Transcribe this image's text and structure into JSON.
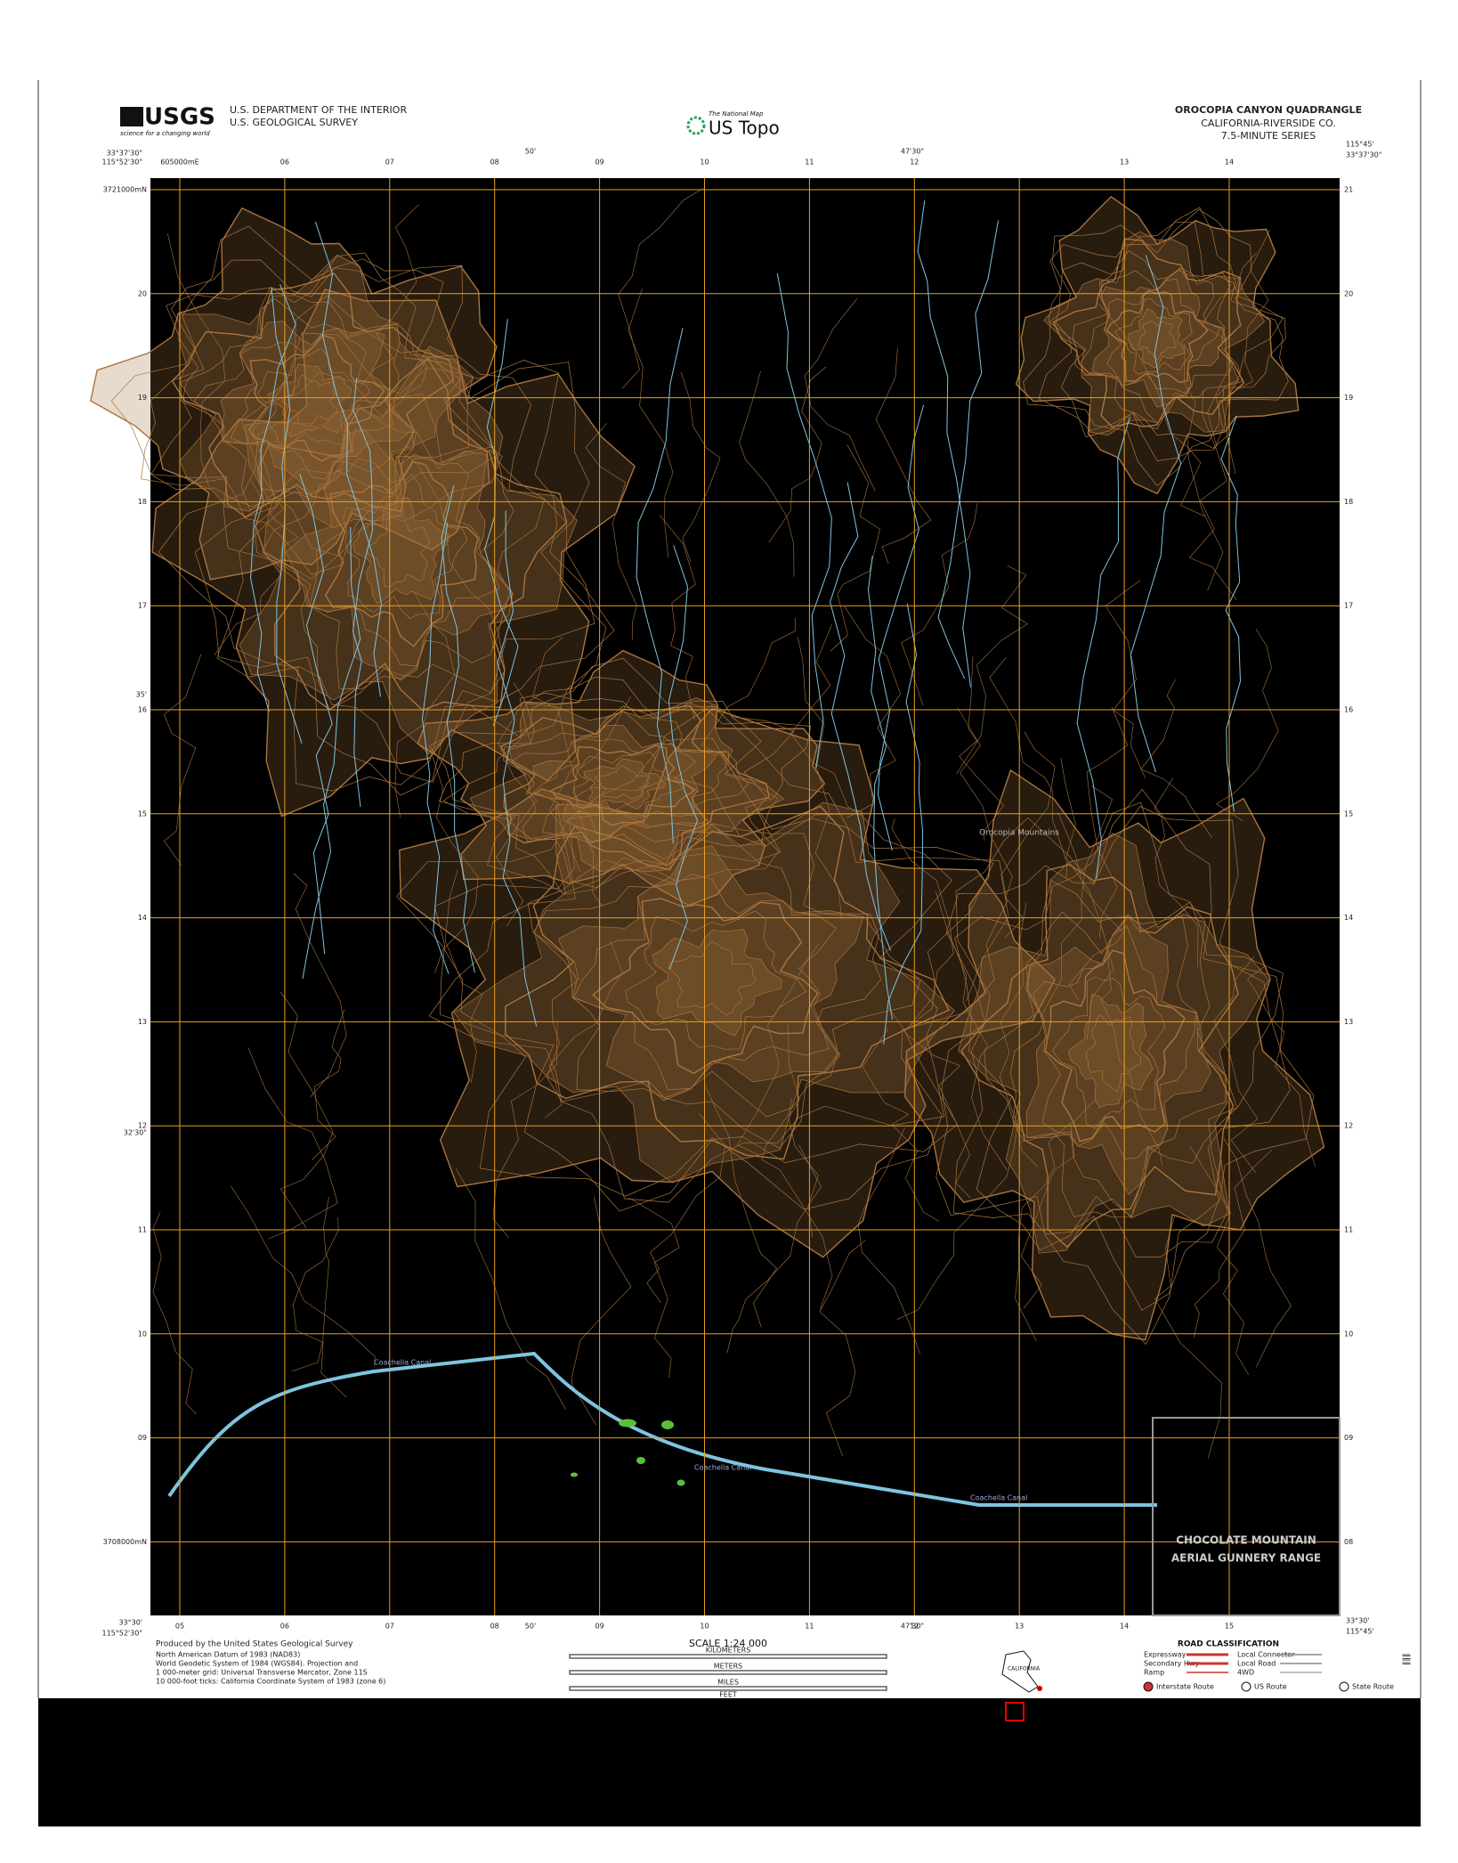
{
  "header": {
    "logo": "USGS",
    "logo_tagline": "science for a changing world",
    "agency_1": "U.S. DEPARTMENT OF THE INTERIOR",
    "agency_2": "U.S. GEOLOGICAL SURVEY",
    "national_map": "The National Map",
    "us_topo": "US Topo",
    "quad_name": "OROCOPIA CANYON QUADRANGLE",
    "state_county": "CALIFORNIA-RIVERSIDE CO.",
    "series": "7.5-MINUTE SERIES"
  },
  "corners": {
    "top_left_lat": "33°37'30\"",
    "top_left_lon": "115°52'30\"",
    "top_right_lon": "115°45'",
    "top_right_lat": "33°37'30\"",
    "bottom_left_lat": "33°30'",
    "bottom_left_lon": "115°52'30\"",
    "bottom_right_lat": "33°30'",
    "bottom_right_lon": "115°45'"
  },
  "graticule": {
    "top_mid_1": "50'",
    "top_mid_2": "47'30\"",
    "left_mid_1": "35'",
    "left_mid_2": "32'30\"",
    "bottom_mid_1": "50'",
    "bottom_mid_2": "47'30\""
  },
  "grid": {
    "top_labels": [
      "605000mE",
      "06",
      "07",
      "08",
      "09",
      "10",
      "11",
      "12",
      "13",
      "14"
    ],
    "bottom_labels": [
      "05",
      "06",
      "07",
      "08",
      "09",
      "10",
      "11",
      "12",
      "13",
      "14",
      "15"
    ],
    "left_labels": [
      "3721000mN",
      "20",
      "19",
      "18",
      "17",
      "16",
      "15",
      "14",
      "13",
      "12",
      "11",
      "10",
      "09",
      "3708000mN"
    ],
    "right_labels": [
      "21",
      "20",
      "19",
      "18",
      "17",
      "16",
      "15",
      "14",
      "13",
      "12",
      "11",
      "10",
      "09",
      "08"
    ]
  },
  "places": {
    "mountains": "Orocopia Mountains",
    "canal_1": "Coachella Canal",
    "canal_2": "Coachella Canal",
    "canal_3": "Coachella Canal",
    "range_1": "CHOCOLATE MOUNTAIN",
    "range_2": "AERIAL GUNNERY RANGE"
  },
  "footer": {
    "produced": "Produced by the United States Geological Survey",
    "datum_1": "North American Datum of 1983 (NAD83)",
    "datum_2": "World Geodetic System of 1984 (WGS84). Projection and",
    "datum_3": "1 000-meter grid: Universal Transverse Mercator, Zone 11S",
    "datum_4": "10 000-foot ticks: California Coordinate System of 1983 (zone 6)",
    "scale": "SCALE 1:24 000",
    "km": "KILOMETERS",
    "meters": "METERS",
    "miles": "MILES",
    "feet": "FEET",
    "road_class": "ROAD CLASSIFICATION",
    "roads": [
      "Expressway",
      "Secondary Hwy",
      "Ramp",
      "Local Connector",
      "Local Road",
      "4WD"
    ],
    "routes": [
      "Interstate Route",
      "US Route",
      "State Route"
    ],
    "state": "CALIFORNIA"
  }
}
